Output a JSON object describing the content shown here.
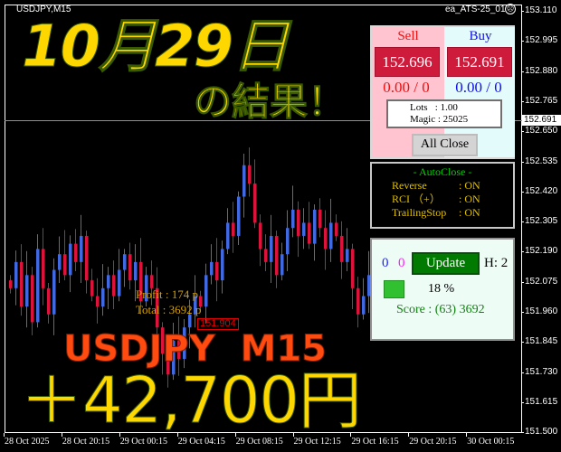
{
  "chart_header": {
    "symbol": "USDJPY,M15",
    "ea_name": "ea_ATS-25_01",
    "ea_status_icon": "sad-face-icon"
  },
  "price_axis": {
    "ticks": [
      "153.110",
      "152.995",
      "152.880",
      "152.765",
      "152.650",
      "152.535",
      "152.420",
      "152.305",
      "152.190",
      "152.075",
      "151.960",
      "151.845",
      "151.730",
      "151.615",
      "151.500"
    ],
    "current_price": "152.691"
  },
  "time_axis": {
    "ticks": [
      "28 Oct 2025",
      "28 Oct 20:15",
      "29 Oct 00:15",
      "29 Oct 04:15",
      "29 Oct 08:15",
      "29 Oct 12:15",
      "29 Oct 16:15",
      "29 Oct 20:15",
      "30 Oct 00:15"
    ]
  },
  "chart_data": {
    "type": "candlestick",
    "symbol": "USDJPY",
    "timeframe": "M15",
    "ylim": [
      151.5,
      153.11
    ],
    "approx_closes": [
      152.05,
      152.15,
      151.98,
      152.1,
      151.92,
      152.2,
      152.05,
      151.95,
      152.12,
      152.18,
      152.1,
      152.22,
      152.15,
      152.25,
      152.08,
      152.02,
      151.98,
      152.05,
      152.1,
      152.02,
      152.12,
      152.18,
      152.08,
      152.15,
      152.0,
      152.1,
      152.05,
      151.9,
      151.8,
      151.72,
      151.85,
      151.78,
      151.9,
      151.95,
      152.02,
      151.98,
      152.1,
      152.15,
      152.08,
      152.2,
      152.3,
      152.25,
      152.4,
      152.52,
      152.45,
      152.3,
      152.2,
      152.15,
      152.25,
      152.1,
      152.18,
      152.28,
      152.35,
      152.25,
      152.3,
      152.22,
      152.35,
      152.28,
      152.2,
      152.3,
      152.25,
      152.15,
      152.2,
      152.05,
      151.95,
      152.02,
      152.1
    ],
    "colors": {
      "up": "#4169e1",
      "down": "#dc143c"
    }
  },
  "trade_annotations": {
    "price_label": "151.904",
    "profit": "Profit : 174 p",
    "total": "Total : 3692 p"
  },
  "overlay": {
    "date_title": "10月29日",
    "subtitle": "の結果！",
    "pair": "USDJPY  M15",
    "result": "＋42,700円"
  },
  "panel_trade": {
    "sell_label": "Sell",
    "buy_label": "Buy",
    "sell_price": "152.696",
    "buy_price": "152.691",
    "sell_position": "0.00 / 0",
    "buy_position": "0.00 / 0",
    "lots": "Lots   : 1.00",
    "magic": "Magic : 25025",
    "all_close": "All Close"
  },
  "panel_autoclose": {
    "title": "- AutoClose -",
    "rows": [
      {
        "label": "Reverse",
        "value": ": ON"
      },
      {
        "label": "RCI （+）",
        "value": ": ON"
      },
      {
        "label": "TrailingStop",
        "value": ": ON"
      }
    ]
  },
  "panel_status": {
    "count_blue": "0",
    "count_magenta": "0",
    "update_label": "Update",
    "h_label": "H: 2",
    "progress_percent": "18 %",
    "progress_value": 18,
    "score": "Score : (63) 3692"
  }
}
